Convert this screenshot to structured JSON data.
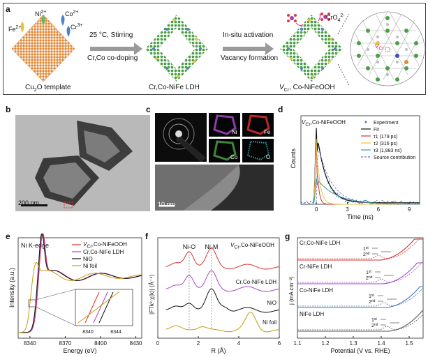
{
  "panels": {
    "a": {
      "label": "a",
      "ions": {
        "fe": "Fe",
        "fe_sup": "2+",
        "ni": "Ni",
        "ni_sup": "2+",
        "co": "Co",
        "co_sup": "2+",
        "cr": "Cr",
        "cr_sup": "3+"
      },
      "step1_top": "25 °C, Stirring",
      "step1_bottom": "Cr,Co co-doping",
      "step2_top": "In-situ activation",
      "step2_bottom": "Vacancy formation",
      "label_cu2o": "Cu",
      "label_cu2o_sub": "2",
      "label_cu2o_end": "O template",
      "label_ldh": "Cr,Co-NiFe LDH",
      "label_ooh_v": "V",
      "label_ooh_sub": "Cr",
      "label_ooh_end": ", Co-NiFeOOH",
      "cro4": "CrO",
      "cro4_sub": "4",
      "cro4_sup": "2-",
      "vac_v": "V",
      "vac_sub": "Cr"
    },
    "b": {
      "label": "b",
      "scale": "200 nm"
    },
    "c": {
      "label": "c",
      "map_ni": "Ni",
      "map_fe": "Fe",
      "map_co": "Co",
      "map_o": "O",
      "scale": "10 nm"
    }
  },
  "colors": {
    "orange": "#e08a3a",
    "green": "#4a9e46",
    "blue": "#3f75b8",
    "yellow": "#e6c439",
    "red": "#d93030",
    "purple": "#a347c4",
    "gray": "#8b8b8b",
    "black": "#111111"
  },
  "chart_data": [
    {
      "id": "d",
      "type": "line",
      "label": "d",
      "title_v": "V",
      "title_sub": "Cr",
      "title_end": ",Co-NiFeOOH",
      "xlabel": "Time (ns)",
      "ylabel": "Counts",
      "xlim": [
        -1.5,
        10
      ],
      "xticks": [
        0,
        3,
        6,
        9
      ],
      "legend": [
        "Experiment",
        "Fit",
        "τ1 (179 ps)",
        "τ2 (316 ps)",
        "τ3 (1,883 ns)",
        "Source contribution"
      ],
      "legend_colors": [
        "#3f75b8",
        "#111111",
        "#d93030",
        "#e6c439",
        "#3f9e9e",
        "#6a6ad0"
      ],
      "components": [
        {
          "name": "Fit",
          "tau_ns": 0.9,
          "amp": 1.0
        },
        {
          "name": "τ1 (179 ps)",
          "tau_ns": 0.179,
          "amp": 0.8
        },
        {
          "name": "τ2 (316 ps)",
          "tau_ns": 0.316,
          "amp": 0.88
        },
        {
          "name": "τ3 (1,883 ns)",
          "tau_ns": 1.883,
          "amp": 0.35
        }
      ]
    },
    {
      "id": "e",
      "type": "line",
      "label": "e",
      "title": "Ni K-edge",
      "xlabel": "Energy (eV)",
      "ylabel": "Intensity (a.u.)",
      "xlim": [
        8330,
        8435
      ],
      "xticks": [
        8340,
        8370,
        8400,
        8430
      ],
      "legend_v": "V",
      "legend_sub": "Cr",
      "legend_end": ",Co-NiFeOOH",
      "legend": [
        "V_Cr,Co-NiFeOOH",
        "Cr,Co-NiFe LDH",
        "NiO",
        "Ni foil"
      ],
      "legend_colors": [
        "#d93030",
        "#a347c4",
        "#111111",
        "#c99a10"
      ],
      "inset_ticks": [
        "8340",
        "8344"
      ],
      "peak_energy": 8350
    },
    {
      "id": "f",
      "type": "line",
      "label": "f",
      "xlabel": "R (Å)",
      "ylabel": "|FTk³·χ(k)| (Å⁻⁴)",
      "xlim": [
        0,
        6
      ],
      "xticks": [
        0,
        2,
        4,
        6
      ],
      "annotations": [
        "Ni-O",
        "Ni-M"
      ],
      "series_labels_v": "V",
      "series_labels_sub": "Cr",
      "series_labels_end": ",Co-NiFeOOH",
      "series_labels": [
        "V_Cr,Co-NiFeOOH",
        "Cr,Co-NiFe LDH",
        "NiO",
        "Ni foil"
      ],
      "series_colors": [
        "#d93030",
        "#a347c4",
        "#111111",
        "#c99a10"
      ],
      "peaks": {
        "Ni-O": 1.55,
        "Ni-M": 2.65
      }
    },
    {
      "id": "g",
      "type": "line",
      "label": "g",
      "xlabel": "Potential (V vs. RHE)",
      "ylabel": "j (mA cm⁻²)",
      "xlim": [
        1.1,
        1.55
      ],
      "xticks": [
        1.1,
        1.2,
        1.3,
        1.4,
        1.5
      ],
      "xticklabels": [
        "1.1",
        "1.2",
        "1.3",
        "1.4",
        "1.5"
      ],
      "series": [
        "Cr,Co-NiFe LDH",
        "Cr-NiFe LDH",
        "Co-NiFe LDH",
        "NiFe LDH"
      ],
      "series_colors": [
        "#d93030",
        "#a347c4",
        "#3f75b8",
        "#555555"
      ],
      "cycles": [
        "1",
        "2"
      ],
      "cycle_sup": [
        "st",
        "nd"
      ],
      "onsets": [
        1.39,
        1.4,
        1.41,
        1.42
      ]
    }
  ]
}
